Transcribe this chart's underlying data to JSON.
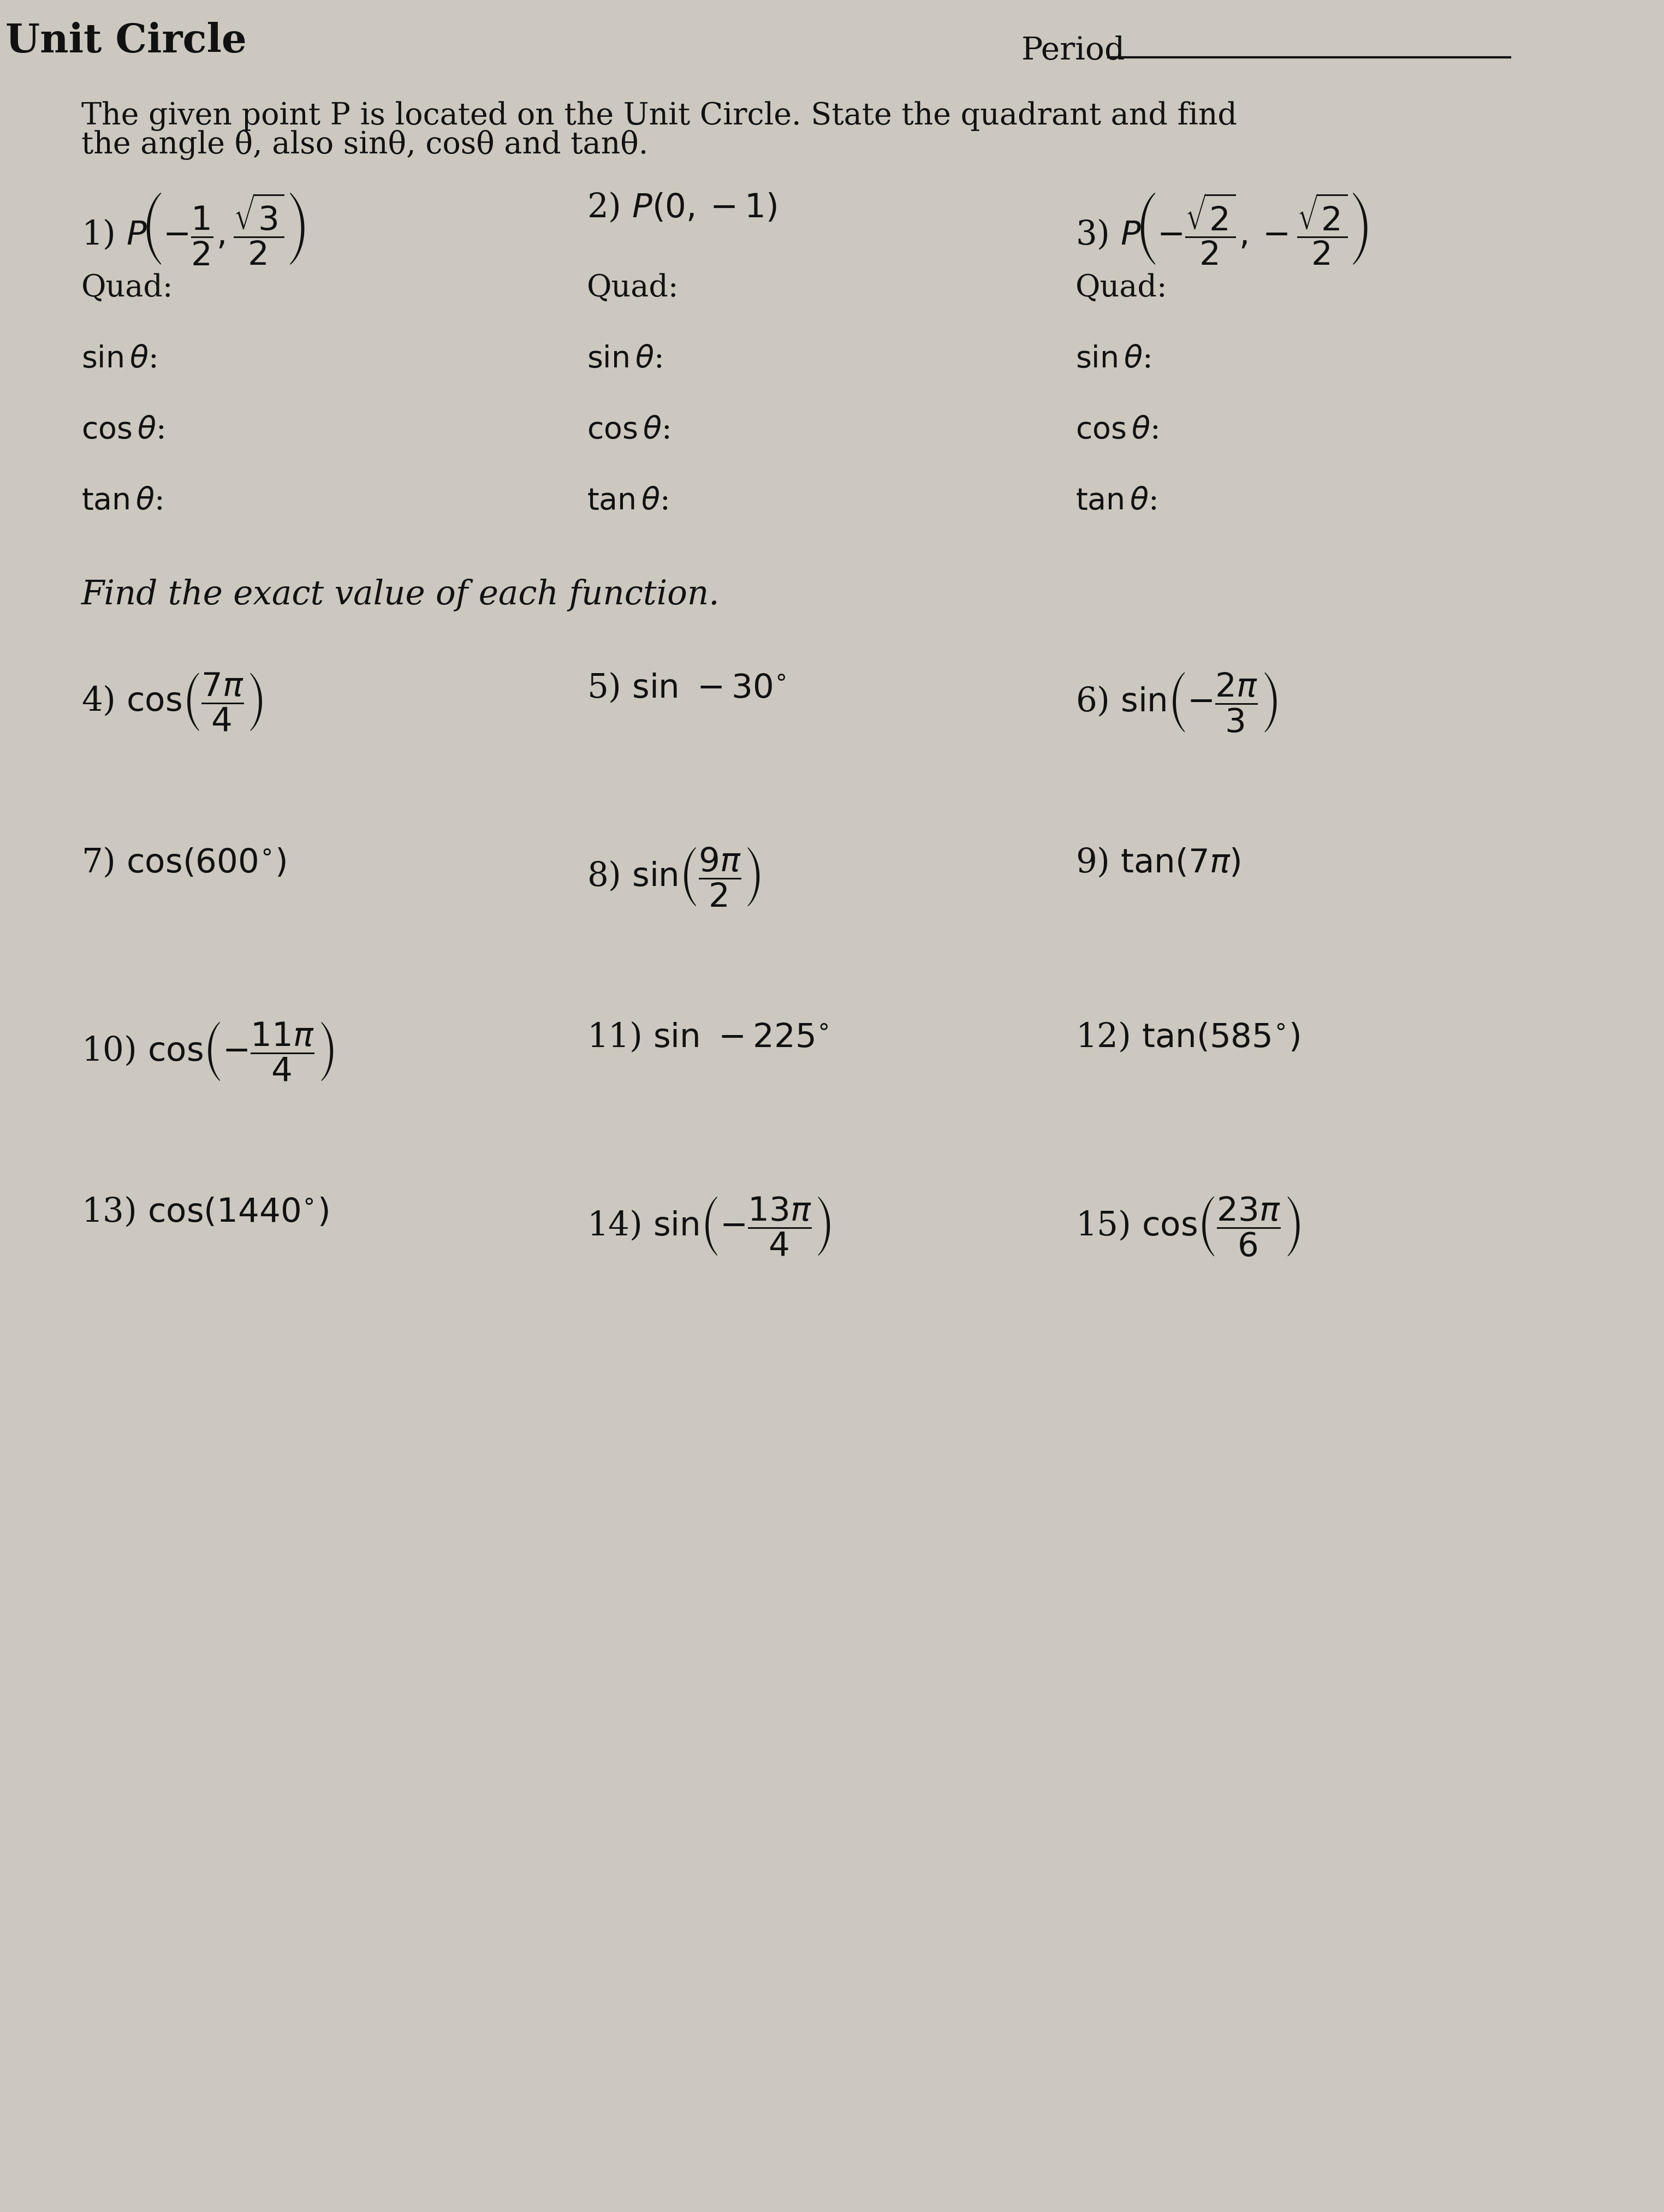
{
  "bg_color": "#ccc8bf",
  "text_color": "#111111",
  "period_label": "Period",
  "instructions_line1": "The given point P is located on the Unit Circle. State the quadrant and find",
  "instructions_line2": "the angle θ, also sinθ, cosθ and tanθ.",
  "section2_title": "Find the exact value of each function."
}
